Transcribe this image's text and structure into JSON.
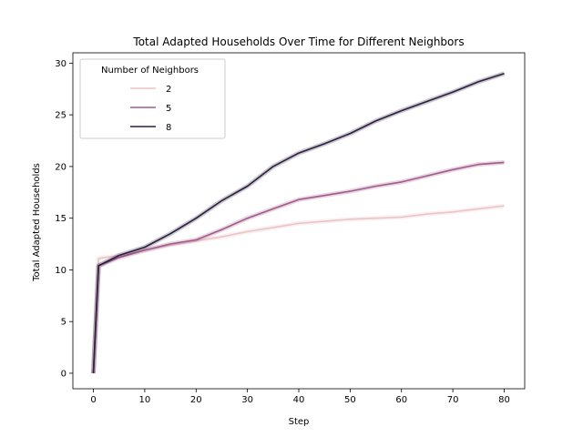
{
  "chart_data": {
    "type": "line",
    "title": "Total Adapted Households Over Time for Different Neighbors",
    "xlabel": "Step",
    "ylabel": "Total Adapted Households",
    "xlim": [
      -4,
      84
    ],
    "ylim": [
      -1.5,
      31
    ],
    "xticks": [
      0,
      10,
      20,
      30,
      40,
      50,
      60,
      70,
      80
    ],
    "yticks": [
      0,
      5,
      10,
      15,
      20,
      25,
      30
    ],
    "grid": false,
    "legend": {
      "title": "Number of Neighbors",
      "placement": "top-left"
    },
    "series": [
      {
        "name": "2",
        "color": "#ebc4c6",
        "x": [
          0,
          1,
          5,
          10,
          15,
          20,
          25,
          30,
          35,
          40,
          45,
          50,
          55,
          60,
          65,
          70,
          75,
          80
        ],
        "y": [
          0,
          11.1,
          11.4,
          11.9,
          12.4,
          12.8,
          13.2,
          13.7,
          14.1,
          14.5,
          14.7,
          14.9,
          15.0,
          15.1,
          15.4,
          15.6,
          15.9,
          16.2
        ]
      },
      {
        "name": "5",
        "color": "#a05a8c",
        "x": [
          0,
          1,
          5,
          10,
          15,
          20,
          25,
          30,
          35,
          40,
          45,
          50,
          55,
          60,
          65,
          70,
          75,
          80
        ],
        "y": [
          0,
          10.4,
          11.2,
          11.9,
          12.5,
          12.9,
          13.9,
          15.0,
          15.9,
          16.8,
          17.2,
          17.6,
          18.1,
          18.5,
          19.1,
          19.7,
          20.2,
          20.4
        ]
      },
      {
        "name": "8",
        "color": "#2c1e3e",
        "x": [
          0,
          1,
          5,
          10,
          15,
          20,
          25,
          30,
          35,
          40,
          45,
          50,
          55,
          60,
          65,
          70,
          75,
          80
        ],
        "y": [
          0,
          10.4,
          11.4,
          12.2,
          13.5,
          15.0,
          16.7,
          18.1,
          20.0,
          21.3,
          22.2,
          23.2,
          24.4,
          25.4,
          26.3,
          27.2,
          28.2,
          29.0
        ]
      }
    ]
  }
}
